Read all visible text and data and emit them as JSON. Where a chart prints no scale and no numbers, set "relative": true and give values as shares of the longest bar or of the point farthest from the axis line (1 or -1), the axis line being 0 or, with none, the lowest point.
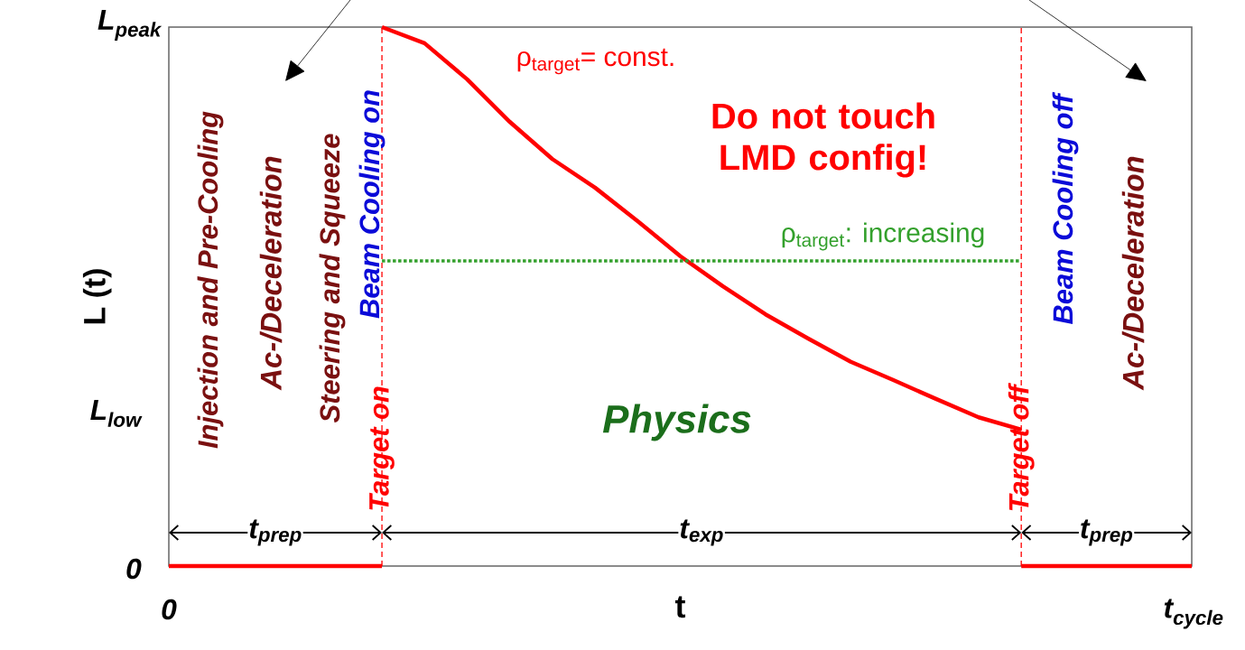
{
  "chart_data": {
    "type": "line",
    "relative": true,
    "xlabel": "t",
    "ylabel": "L (t)",
    "categories": [
      null,
      null,
      null,
      null,
      null,
      null,
      null,
      null,
      null,
      null,
      null,
      null,
      null,
      null,
      null,
      null,
      null,
      null,
      null,
      null,
      null,
      null,
      null,
      null,
      null
    ],
    "series": [
      {
        "name": "ρ$_{target}$= const.",
        "color": "#ff0000",
        "line_style": "solid",
        "values": [
          null,
          null,
          null,
          null,
          null,
          1,
          0.97,
          0.903,
          0.824,
          0.755,
          0.702,
          0.64,
          0.575,
          0.519,
          0.467,
          0.422,
          0.379,
          0.345,
          0.31,
          0.276,
          0.253,
          null,
          null,
          null,
          null
        ]
      },
      {
        "name": "ρ$_{target}$: increasing",
        "color": "#33a02c",
        "line_style": "dotted",
        "values": [
          null,
          null,
          null,
          null,
          null,
          0.566,
          0.566,
          0.566,
          0.566,
          0.566,
          0.566,
          0.566,
          0.566,
          0.566,
          0.566,
          0.566,
          0.566,
          0.566,
          0.566,
          0.566,
          0.566,
          null,
          null,
          null,
          null
        ]
      },
      {
        "color": "#ff0000",
        "line_style": "solid",
        "values": [
          0,
          0,
          0,
          0,
          0,
          0,
          null,
          null,
          null,
          null,
          null,
          null,
          null,
          null,
          null,
          null,
          null,
          null,
          null,
          null,
          0,
          0,
          0,
          0,
          0
        ]
      }
    ],
    "annotations": [
      "Target on",
      "Target off",
      "L$_{peak}$",
      "L$_{low}$",
      "0",
      "0",
      "t$_{cycle}$",
      "Injection and Pre-Cooling",
      "Ac-/Deceleration",
      "Steering and Squeeze",
      "Beam Cooling on",
      "Beam Cooling off",
      "Ac-/Deceleration",
      "Do not touch LMD config!",
      "Physics",
      "t$_{prep}$",
      "t$_{exp}$",
      "t$_{prep}$"
    ]
  }
}
